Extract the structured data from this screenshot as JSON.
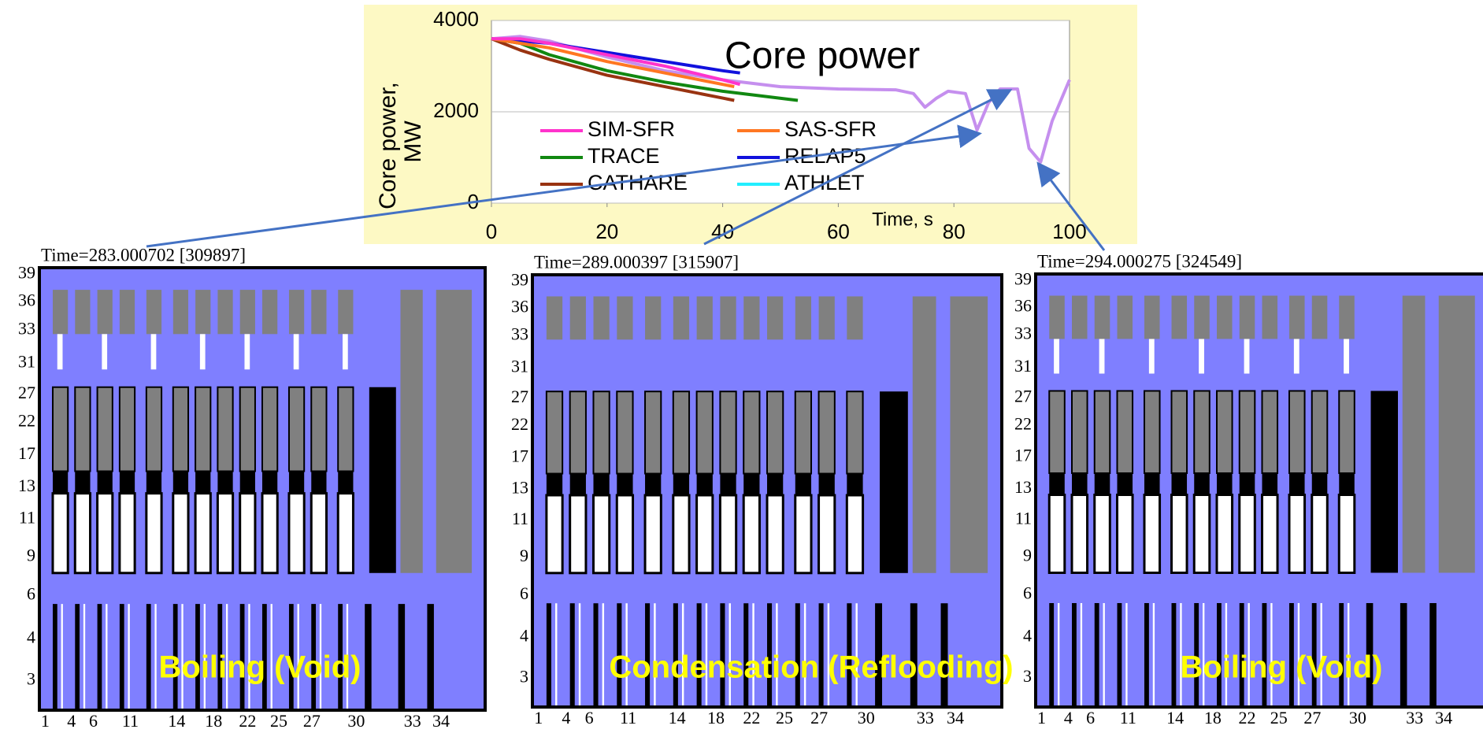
{
  "chart_data": {
    "type": "line",
    "title": "Core power",
    "x_label": "Time, s",
    "y_label": [
      "Core power,",
      "MW"
    ],
    "xlim": [
      0,
      100
    ],
    "ylim": [
      0,
      4000
    ],
    "xticks": [
      0,
      20,
      40,
      60,
      80,
      100
    ],
    "yticks": [
      0,
      2000,
      4000
    ],
    "series": [
      {
        "name": "SIM-SFR",
        "color": "#ff33cc",
        "x": [
          0,
          5,
          10,
          20,
          30,
          40,
          43
        ],
        "values": [
          3600,
          3600,
          3500,
          3250,
          3000,
          2700,
          2600
        ]
      },
      {
        "name": "SAS-SFR",
        "color": "#ff7722",
        "x": [
          0,
          10,
          20,
          30,
          40,
          42
        ],
        "values": [
          3600,
          3400,
          3100,
          2850,
          2600,
          2550
        ]
      },
      {
        "name": "TRACE",
        "color": "#118811",
        "x": [
          0,
          5,
          10,
          20,
          30,
          40,
          53
        ],
        "values": [
          3600,
          3500,
          3250,
          2900,
          2650,
          2450,
          2250
        ]
      },
      {
        "name": "RELAP5",
        "color": "#1111dd",
        "x": [
          0,
          10,
          20,
          30,
          40,
          43
        ],
        "values": [
          3600,
          3500,
          3300,
          3100,
          2900,
          2850
        ]
      },
      {
        "name": "CATHARE",
        "color": "#993311",
        "x": [
          0,
          5,
          10,
          20,
          30,
          40,
          42
        ],
        "values": [
          3600,
          3350,
          3150,
          2800,
          2550,
          2300,
          2250
        ]
      },
      {
        "name": "ATHLET",
        "color": "#22eeff",
        "x": [],
        "values": []
      },
      {
        "color": "#c58fee",
        "x": [
          0,
          5,
          10,
          20,
          30,
          40,
          50,
          60,
          70,
          73,
          75,
          77,
          79,
          82,
          84,
          86,
          88,
          91,
          93,
          95,
          97,
          100
        ],
        "values": [
          3600,
          3650,
          3550,
          3200,
          2900,
          2700,
          2550,
          2500,
          2480,
          2400,
          2100,
          2300,
          2450,
          2400,
          1600,
          2200,
          2500,
          2500,
          1200,
          900,
          1800,
          2700
        ]
      }
    ]
  },
  "panels": [
    {
      "title": "Time=283.000702 [309897]",
      "annotation": "Boiling (Void)"
    },
    {
      "title": "Time=289.000397 [315907]",
      "annotation": "Condensation (Reflooding)"
    },
    {
      "title": "Time=294.000275 [324549]",
      "annotation": "Boiling (Void)"
    }
  ],
  "y_labels": [
    "39",
    "36",
    "33",
    "31",
    "27",
    "22",
    "17",
    "13",
    "11",
    "9",
    "6",
    "4",
    "3"
  ],
  "x_labels": [
    "1",
    "4",
    "6",
    "11",
    "14",
    "18",
    "22",
    "25",
    "27",
    "30",
    "33",
    "34"
  ]
}
